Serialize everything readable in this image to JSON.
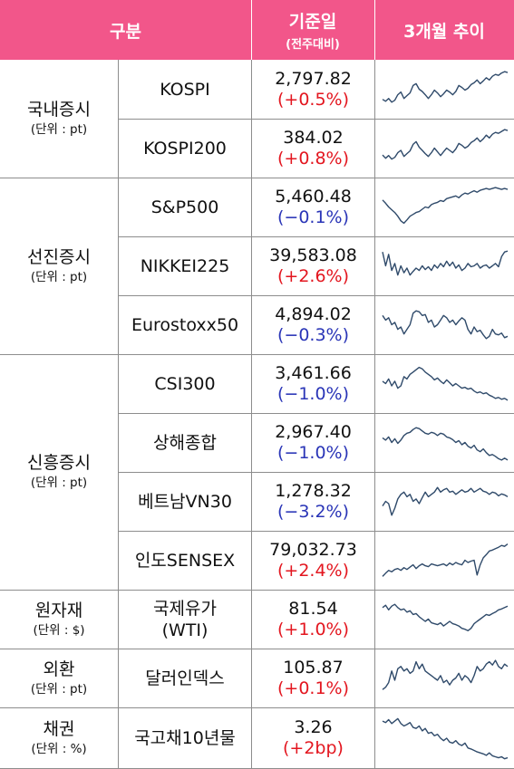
{
  "header": {
    "col_category": "구분",
    "col_value_line1": "기준일",
    "col_value_line2": "(전주대비)",
    "col_trend": "3개월 추이"
  },
  "colors": {
    "header_bg": "#f2568a",
    "up": "#e3161f",
    "down": "#2a35b7",
    "line": "#2f4a6a"
  },
  "groups": [
    {
      "name": "국내증시",
      "unit": "(단위 : pt)"
    },
    {
      "name": "선진증시",
      "unit": "(단위 : pt)"
    },
    {
      "name": "신흥증시",
      "unit": "(단위 : pt)"
    },
    {
      "name": "원자재",
      "unit": "(단위 : $)"
    },
    {
      "name": "외환",
      "unit": "(단위 : pt)"
    },
    {
      "name": "채권",
      "unit": "(단위 : %)"
    }
  ],
  "rows": [
    {
      "name": "KOSPI",
      "value": "2,797.82",
      "change": "(+0.5%)",
      "dir": "up",
      "trend": [
        0.72,
        0.76,
        0.7,
        0.78,
        0.74,
        0.62,
        0.56,
        0.7,
        0.64,
        0.58,
        0.42,
        0.38,
        0.5,
        0.55,
        0.62,
        0.7,
        0.62,
        0.52,
        0.58,
        0.66,
        0.6,
        0.52,
        0.56,
        0.62,
        0.55,
        0.42,
        0.46,
        0.52,
        0.48,
        0.4,
        0.36,
        0.3,
        0.38,
        0.32,
        0.25,
        0.3,
        0.22,
        0.18,
        0.2,
        0.15,
        0.12,
        0.14
      ]
    },
    {
      "name": "KOSPI200",
      "value": "384.02",
      "change": "(+0.8%)",
      "dir": "up",
      "trend": [
        0.65,
        0.72,
        0.66,
        0.74,
        0.7,
        0.6,
        0.55,
        0.68,
        0.62,
        0.56,
        0.42,
        0.36,
        0.48,
        0.55,
        0.62,
        0.68,
        0.6,
        0.5,
        0.58,
        0.66,
        0.58,
        0.5,
        0.55,
        0.6,
        0.52,
        0.4,
        0.44,
        0.5,
        0.46,
        0.38,
        0.34,
        0.28,
        0.36,
        0.3,
        0.22,
        0.28,
        0.2,
        0.16,
        0.18,
        0.14,
        0.1,
        0.12
      ]
    },
    {
      "name": "S&P500",
      "value": "5,460.48",
      "change": "(−0.1%)",
      "dir": "down",
      "trend": [
        0.35,
        0.42,
        0.5,
        0.56,
        0.62,
        0.7,
        0.8,
        0.85,
        0.78,
        0.7,
        0.66,
        0.62,
        0.6,
        0.55,
        0.5,
        0.52,
        0.45,
        0.42,
        0.4,
        0.36,
        0.38,
        0.32,
        0.3,
        0.28,
        0.26,
        0.3,
        0.24,
        0.2,
        0.22,
        0.18,
        0.15,
        0.18,
        0.14,
        0.12,
        0.1,
        0.12,
        0.1,
        0.08,
        0.1,
        0.12,
        0.1,
        0.12
      ]
    },
    {
      "name": "NIKKEI225",
      "value": "39,583.08",
      "change": "(+2.6%)",
      "dir": "up",
      "trend": [
        0.2,
        0.5,
        0.25,
        0.6,
        0.45,
        0.7,
        0.5,
        0.65,
        0.55,
        0.7,
        0.62,
        0.55,
        0.6,
        0.5,
        0.58,
        0.52,
        0.6,
        0.48,
        0.55,
        0.45,
        0.52,
        0.4,
        0.5,
        0.42,
        0.55,
        0.48,
        0.6,
        0.55,
        0.45,
        0.52,
        0.5,
        0.45,
        0.55,
        0.5,
        0.48,
        0.55,
        0.5,
        0.45,
        0.52,
        0.3,
        0.2,
        0.18
      ]
    },
    {
      "name": "Eurostoxx50",
      "value": "4,894.02",
      "change": "(−0.3%)",
      "dir": "down",
      "trend": [
        0.3,
        0.4,
        0.35,
        0.5,
        0.45,
        0.6,
        0.55,
        0.7,
        0.6,
        0.5,
        0.25,
        0.2,
        0.22,
        0.3,
        0.28,
        0.45,
        0.4,
        0.55,
        0.5,
        0.4,
        0.3,
        0.35,
        0.45,
        0.4,
        0.5,
        0.42,
        0.35,
        0.4,
        0.6,
        0.7,
        0.55,
        0.65,
        0.62,
        0.72,
        0.8,
        0.75,
        0.6,
        0.7,
        0.72,
        0.68,
        0.78,
        0.75
      ]
    },
    {
      "name": "CSI300",
      "value": "3,461.66",
      "change": "(−1.0%)",
      "dir": "down",
      "trend": [
        0.45,
        0.5,
        0.4,
        0.55,
        0.45,
        0.6,
        0.55,
        0.35,
        0.4,
        0.3,
        0.25,
        0.2,
        0.15,
        0.18,
        0.25,
        0.3,
        0.35,
        0.42,
        0.38,
        0.45,
        0.5,
        0.42,
        0.48,
        0.55,
        0.5,
        0.55,
        0.6,
        0.58,
        0.62,
        0.6,
        0.66,
        0.7,
        0.68,
        0.72,
        0.7,
        0.75,
        0.78,
        0.82,
        0.8,
        0.84,
        0.82,
        0.86
      ]
    },
    {
      "name": "상해종합",
      "value": "2,967.40",
      "change": "(−1.0%)",
      "dir": "down",
      "trend": [
        0.4,
        0.45,
        0.38,
        0.5,
        0.42,
        0.52,
        0.45,
        0.35,
        0.3,
        0.28,
        0.22,
        0.18,
        0.2,
        0.25,
        0.3,
        0.32,
        0.28,
        0.3,
        0.35,
        0.3,
        0.32,
        0.38,
        0.4,
        0.44,
        0.5,
        0.46,
        0.55,
        0.5,
        0.58,
        0.62,
        0.56,
        0.66,
        0.7,
        0.64,
        0.72,
        0.78,
        0.76,
        0.8,
        0.85,
        0.88,
        0.84,
        0.88
      ]
    },
    {
      "name": "베트남VN30",
      "value": "1,278.32",
      "change": "(−3.2%)",
      "dir": "down",
      "trend": [
        0.6,
        0.5,
        0.55,
        0.8,
        0.65,
        0.45,
        0.35,
        0.3,
        0.4,
        0.35,
        0.5,
        0.45,
        0.55,
        0.42,
        0.3,
        0.4,
        0.35,
        0.3,
        0.2,
        0.3,
        0.25,
        0.22,
        0.3,
        0.28,
        0.35,
        0.3,
        0.25,
        0.3,
        0.28,
        0.22,
        0.3,
        0.26,
        0.22,
        0.28,
        0.3,
        0.35,
        0.3,
        0.32,
        0.38,
        0.34,
        0.36,
        0.4
      ]
    },
    {
      "name": "인도SENSEX",
      "value": "79,032.73",
      "change": "(+2.4%)",
      "dir": "up",
      "trend": [
        0.85,
        0.78,
        0.72,
        0.75,
        0.7,
        0.68,
        0.72,
        0.66,
        0.7,
        0.65,
        0.6,
        0.68,
        0.62,
        0.58,
        0.62,
        0.64,
        0.58,
        0.6,
        0.62,
        0.6,
        0.58,
        0.62,
        0.56,
        0.6,
        0.55,
        0.58,
        0.6,
        0.5,
        0.55,
        0.52,
        0.5,
        0.82,
        0.6,
        0.45,
        0.38,
        0.3,
        0.28,
        0.25,
        0.22,
        0.18,
        0.2,
        0.15
      ]
    },
    {
      "name": "국제유가\n(WTI)",
      "value": "81.54",
      "change": "(+1.0%)",
      "dir": "up",
      "trend": [
        0.25,
        0.2,
        0.3,
        0.22,
        0.18,
        0.25,
        0.3,
        0.28,
        0.35,
        0.32,
        0.4,
        0.38,
        0.45,
        0.5,
        0.55,
        0.5,
        0.58,
        0.6,
        0.62,
        0.58,
        0.65,
        0.6,
        0.55,
        0.6,
        0.62,
        0.65,
        0.7,
        0.72,
        0.75,
        0.7,
        0.6,
        0.55,
        0.5,
        0.45,
        0.4,
        0.42,
        0.38,
        0.35,
        0.3,
        0.28,
        0.25,
        0.22
      ]
    },
    {
      "name": "달러인덱스",
      "value": "105.87",
      "change": "(+0.1%)",
      "dir": "up",
      "trend": [
        0.75,
        0.7,
        0.6,
        0.35,
        0.55,
        0.3,
        0.25,
        0.35,
        0.3,
        0.4,
        0.35,
        0.15,
        0.3,
        0.2,
        0.35,
        0.4,
        0.45,
        0.5,
        0.55,
        0.45,
        0.6,
        0.55,
        0.65,
        0.55,
        0.5,
        0.4,
        0.55,
        0.45,
        0.5,
        0.6,
        0.45,
        0.25,
        0.35,
        0.3,
        0.2,
        0.15,
        0.22,
        0.12,
        0.25,
        0.3,
        0.2,
        0.25
      ]
    },
    {
      "name": "국고채10년물",
      "value": "3.26",
      "change": "(+2bp)",
      "dir": "up",
      "trend": [
        0.15,
        0.18,
        0.12,
        0.2,
        0.15,
        0.1,
        0.2,
        0.25,
        0.22,
        0.18,
        0.28,
        0.3,
        0.25,
        0.35,
        0.3,
        0.4,
        0.38,
        0.45,
        0.42,
        0.5,
        0.55,
        0.5,
        0.58,
        0.6,
        0.55,
        0.62,
        0.65,
        0.6,
        0.7,
        0.72,
        0.75,
        0.78,
        0.8,
        0.82,
        0.85,
        0.8,
        0.86,
        0.88,
        0.9,
        0.88,
        0.92,
        0.9
      ]
    }
  ]
}
